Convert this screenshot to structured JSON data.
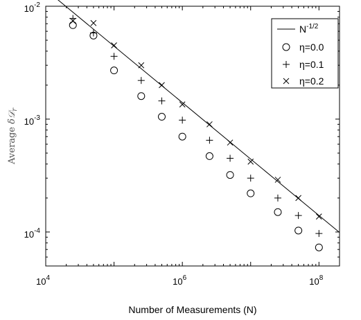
{
  "chart_data": {
    "type": "scatter",
    "xlabel": "Number of Measurements (N)",
    "ylabel_prefix": "Average ",
    "ylabel_symbol": "δ𝒟",
    "ylabel_subscript": "r",
    "x_scale": "log",
    "y_scale": "log",
    "xlim": [
      10000,
      200000000
    ],
    "ylim": [
      5e-05,
      0.01
    ],
    "x_major_ticks": [
      {
        "value": 10000,
        "base": "10",
        "exp": "4"
      },
      {
        "value": 1000000,
        "base": "10",
        "exp": "6"
      },
      {
        "value": 100000000,
        "base": "10",
        "exp": "8"
      }
    ],
    "y_major_ticks": [
      {
        "value": 0.0001,
        "base": "10",
        "exp": "-4"
      },
      {
        "value": 0.001,
        "base": "10",
        "exp": "-3"
      },
      {
        "value": 0.01,
        "base": "10",
        "exp": "-2"
      }
    ],
    "grid": false,
    "legend_placement": "top-right",
    "reference_line": {
      "label_base": "N",
      "label_exp": "-1/2",
      "formula": "y = 1.4 * N^(-1/2)",
      "style": "solid",
      "color": "#000000",
      "x_range": [
        11000,
        200000000
      ]
    },
    "series": [
      {
        "name": "η=0.0",
        "marker": "circle",
        "x": [
          25000,
          50000,
          100000,
          250000,
          500000,
          1000000,
          2500000,
          5000000,
          10000000,
          25000000,
          50000000,
          100000000
        ],
        "y": [
          0.0068,
          0.0055,
          0.0027,
          0.0016,
          0.00105,
          0.0007,
          0.00047,
          0.00032,
          0.00022,
          0.00015,
          0.000103,
          7.3e-05
        ]
      },
      {
        "name": "η=0.1",
        "marker": "plus",
        "x": [
          25000,
          50000,
          100000,
          250000,
          500000,
          1000000,
          2500000,
          5000000,
          10000000,
          25000000,
          50000000,
          100000000
        ],
        "y": [
          0.0078,
          0.0058,
          0.0036,
          0.0022,
          0.00145,
          0.00098,
          0.00065,
          0.00045,
          0.0003,
          0.0002,
          0.00014,
          9.7e-05
        ]
      },
      {
        "name": "η=0.2",
        "marker": "cross",
        "x": [
          25000,
          50000,
          100000,
          250000,
          500000,
          1000000,
          2500000,
          5000000,
          10000000,
          25000000,
          50000000,
          100000000
        ],
        "y": [
          0.0074,
          0.0071,
          0.0045,
          0.003,
          0.002,
          0.00135,
          0.0009,
          0.00062,
          0.00042,
          0.00029,
          0.0002,
          0.000137
        ]
      }
    ]
  }
}
